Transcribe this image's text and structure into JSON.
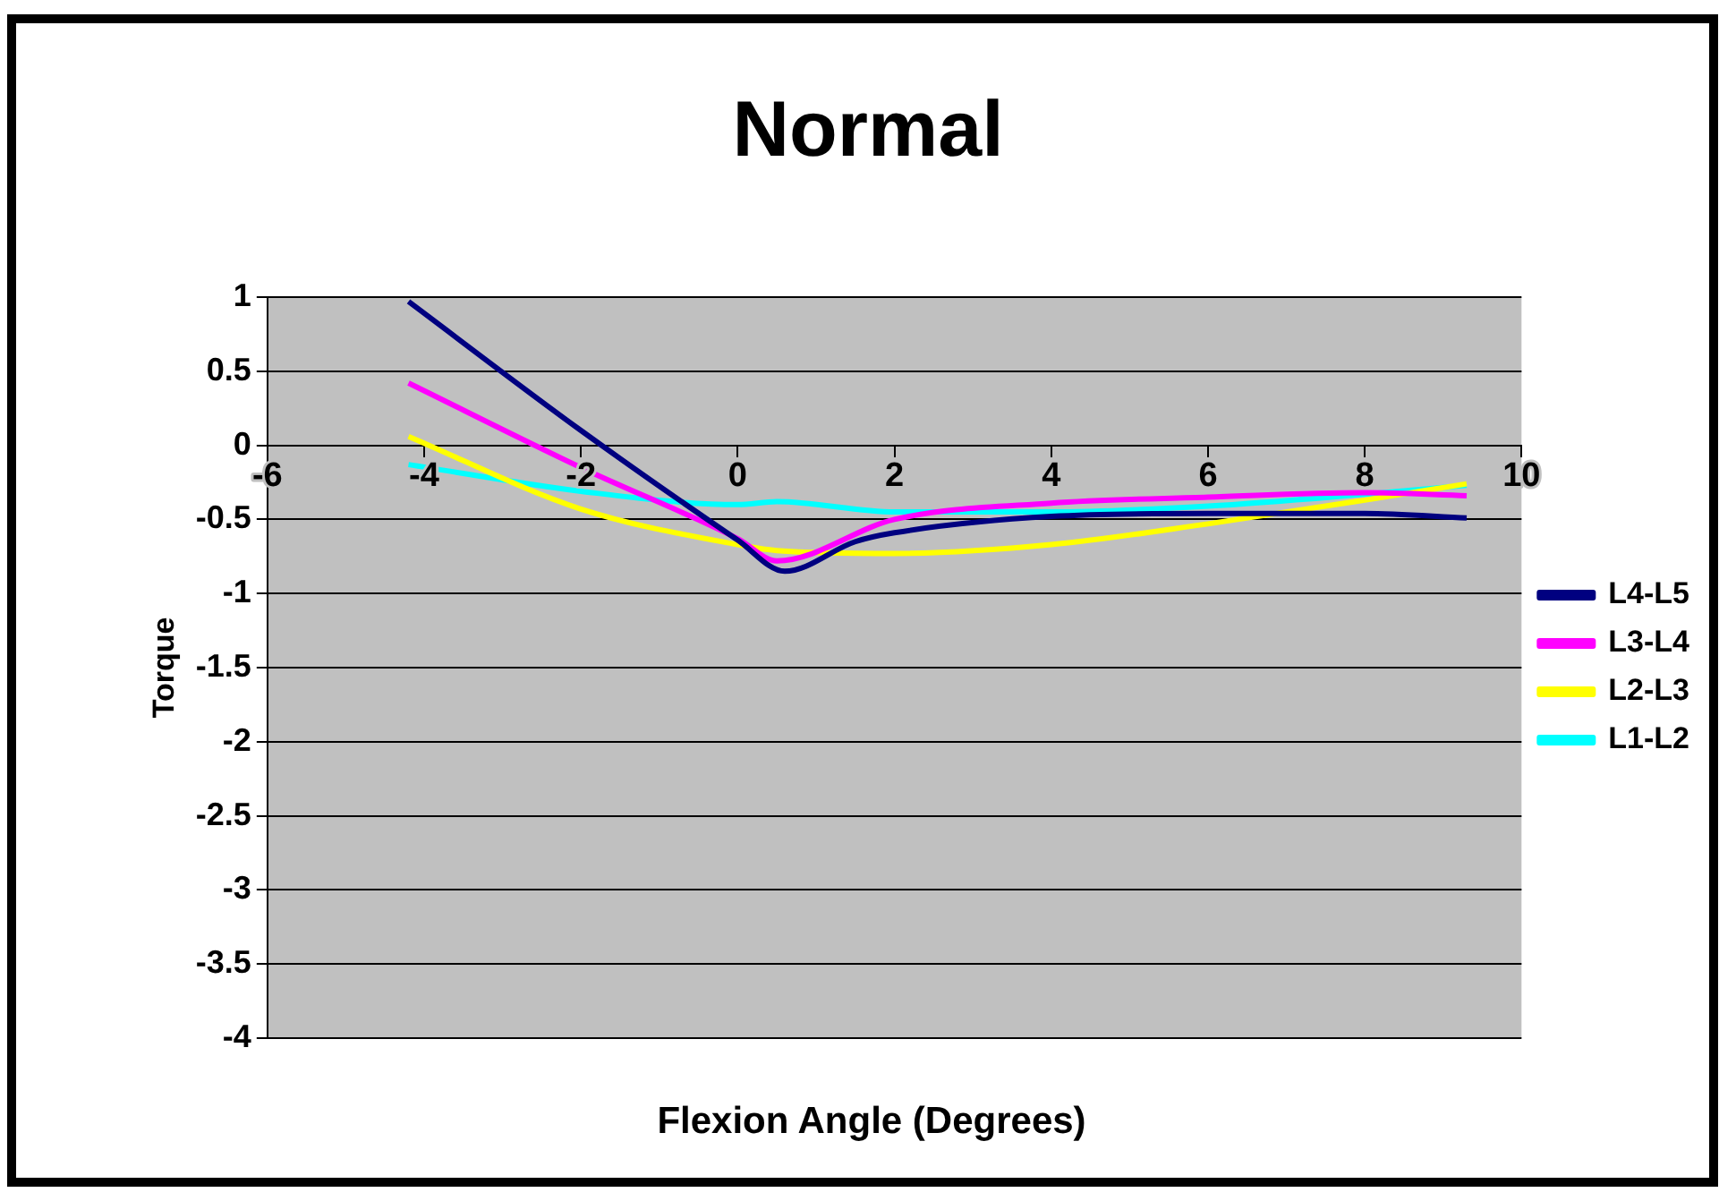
{
  "chart_data": {
    "type": "line",
    "title": "Normal",
    "xlabel": "Flexion Angle (Degrees)",
    "ylabel": "Torque",
    "xlim": [
      -6,
      10
    ],
    "xticks": [
      -6,
      -4,
      -2,
      0,
      2,
      4,
      6,
      8,
      10
    ],
    "ylim": [
      -4,
      1
    ],
    "yticks": [
      -4,
      -3.5,
      -3,
      -2.5,
      -2,
      -1.5,
      -1,
      -0.5,
      0,
      0.5,
      1
    ],
    "grid": "y",
    "legend": "right",
    "marker": "none",
    "line_style": "solid",
    "series": [
      {
        "name": "L4-L5",
        "color": "#000080",
        "x": [
          -4.2,
          -2,
          0,
          0.6,
          1.5,
          2,
          4,
          6,
          8,
          9.3
        ],
        "values": [
          0.97,
          0.1,
          -0.64,
          -0.85,
          -0.65,
          -0.59,
          -0.48,
          -0.46,
          -0.46,
          -0.49
        ]
      },
      {
        "name": "L3-L4",
        "color": "#ff00ff",
        "x": [
          -4.2,
          -2,
          0,
          0.5,
          2,
          4,
          6,
          8,
          9.3
        ],
        "values": [
          0.42,
          -0.15,
          -0.63,
          -0.78,
          -0.5,
          -0.39,
          -0.35,
          -0.32,
          -0.34
        ]
      },
      {
        "name": "L2-L3",
        "color": "#ffff00",
        "x": [
          -4.2,
          -2,
          0,
          0.5,
          2,
          4,
          6,
          8,
          9.3
        ],
        "values": [
          0.06,
          -0.43,
          -0.67,
          -0.71,
          -0.73,
          -0.67,
          -0.53,
          -0.37,
          -0.26
        ]
      },
      {
        "name": "L1-L2",
        "color": "#00ffff",
        "x": [
          -4.2,
          -2,
          0,
          0.5,
          2,
          4,
          6,
          8,
          9.3
        ],
        "values": [
          -0.13,
          -0.31,
          -0.4,
          -0.38,
          -0.45,
          -0.45,
          -0.41,
          -0.33,
          -0.27
        ]
      }
    ]
  }
}
